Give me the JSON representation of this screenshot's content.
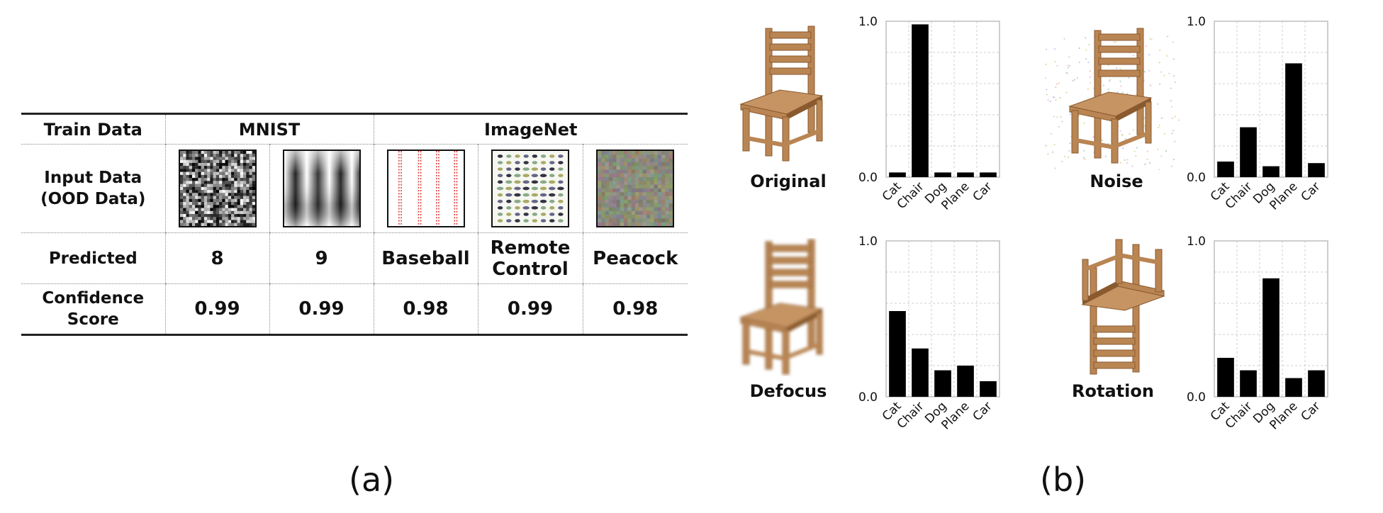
{
  "panel_a": {
    "label": "(a)",
    "header": {
      "row_label": "Train Data",
      "group1": "MNIST",
      "group2": "ImageNet"
    },
    "row_input": [
      "Input Data",
      "(OOD Data)"
    ],
    "row_predicted": "Predicted",
    "row_confidence": [
      "Confidence",
      "Score"
    ],
    "columns": [
      {
        "thumb": "mnist-noise",
        "predicted": [
          "8"
        ],
        "confidence": "0.99"
      },
      {
        "thumb": "mnist-waves",
        "predicted": [
          "9"
        ],
        "confidence": "0.99"
      },
      {
        "thumb": "imagenet-baseball",
        "predicted": [
          "Baseball"
        ],
        "confidence": "0.98"
      },
      {
        "thumb": "imagenet-remote",
        "predicted": [
          "Remote",
          "Control"
        ],
        "confidence": "0.99"
      },
      {
        "thumb": "imagenet-peacock",
        "predicted": [
          "Peacock"
        ],
        "confidence": "0.98"
      }
    ]
  },
  "panel_b": {
    "label": "(b)"
  },
  "chart_data": [
    {
      "type": "bar",
      "title": "Original",
      "categories": [
        "Cat",
        "Chair",
        "Dog",
        "Plane",
        "Car"
      ],
      "values": [
        0.03,
        0.98,
        0.03,
        0.03,
        0.03
      ],
      "ylim": [
        0,
        1
      ],
      "yticks": [
        "0.0",
        "1.0"
      ],
      "grid": true
    },
    {
      "type": "bar",
      "title": "Noise",
      "categories": [
        "Cat",
        "Chair",
        "Dog",
        "Plane",
        "Car"
      ],
      "values": [
        0.1,
        0.32,
        0.07,
        0.73,
        0.09
      ],
      "ylim": [
        0,
        1
      ],
      "yticks": [
        "0.0",
        "1.0"
      ],
      "grid": true
    },
    {
      "type": "bar",
      "title": "Defocus",
      "categories": [
        "Cat",
        "Chair",
        "Dog",
        "Plane",
        "Car"
      ],
      "values": [
        0.55,
        0.31,
        0.17,
        0.2,
        0.1
      ],
      "ylim": [
        0,
        1
      ],
      "yticks": [
        "0.0",
        "1.0"
      ],
      "grid": true
    },
    {
      "type": "bar",
      "title": "Rotation",
      "categories": [
        "Cat",
        "Chair",
        "Dog",
        "Plane",
        "Car"
      ],
      "values": [
        0.25,
        0.17,
        0.76,
        0.12,
        0.17
      ],
      "ylim": [
        0,
        1
      ],
      "yticks": [
        "0.0",
        "1.0"
      ],
      "grid": true
    }
  ],
  "colors": {
    "bar": "#000000",
    "grid": "#cfcfcf",
    "wood": "#b98553",
    "wood_dark": "#8a5a2f"
  }
}
